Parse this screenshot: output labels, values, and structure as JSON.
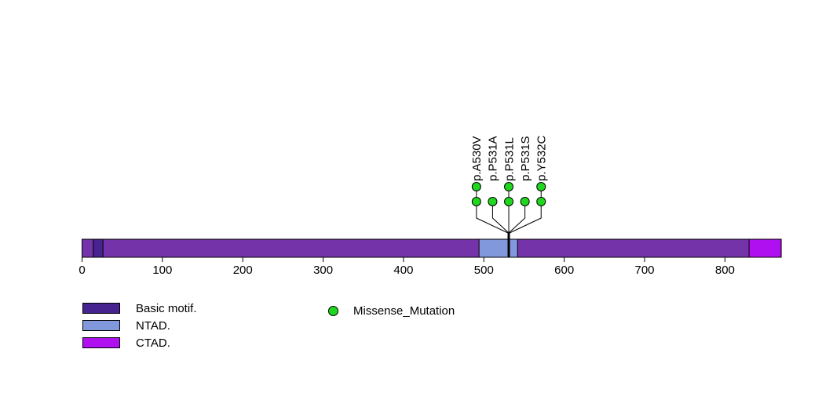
{
  "chart_data": {
    "type": "lollipop",
    "description": "Protein mutation lollipop plot with domain annotations",
    "protein": {
      "length": 870,
      "bar_color": "#7433A8",
      "domains": [
        {
          "name": "Basic motif.",
          "start": 14,
          "end": 26,
          "color": "#46238E"
        },
        {
          "name": "NTAD.",
          "start": 494,
          "end": 542,
          "color": "#8298DC"
        },
        {
          "name": "CTAD.",
          "start": 830,
          "end": 870,
          "color": "#AF10EF"
        }
      ]
    },
    "xaxis": {
      "ticks": [
        0,
        100,
        200,
        300,
        400,
        500,
        600,
        700,
        800
      ]
    },
    "mutations": [
      {
        "label": "p.A530V",
        "position": 530,
        "count": 2,
        "type": "Missense_Mutation"
      },
      {
        "label": "p.P531A",
        "position": 531,
        "count": 1,
        "type": "Missense_Mutation"
      },
      {
        "label": "p.P531L",
        "position": 531,
        "count": 2,
        "type": "Missense_Mutation"
      },
      {
        "label": "p.P531S",
        "position": 531,
        "count": 1,
        "type": "Missense_Mutation"
      },
      {
        "label": "p.Y532C",
        "position": 532,
        "count": 2,
        "type": "Missense_Mutation"
      }
    ],
    "mutation_types": [
      {
        "name": "Missense_Mutation",
        "color": "#1FD71F"
      }
    ]
  }
}
